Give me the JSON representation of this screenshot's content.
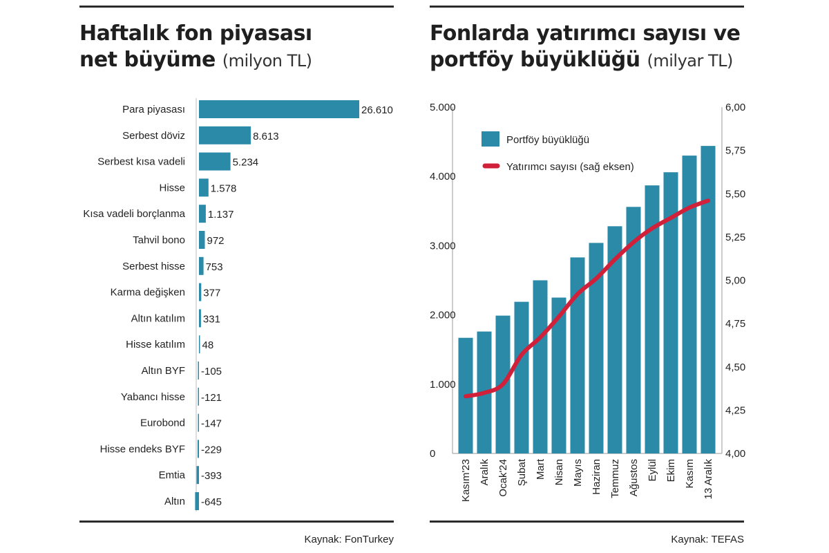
{
  "left": {
    "title_line1": "Haftalık fon piyasası",
    "title_line2": "net büyüme",
    "unit": "(milyon TL)",
    "source": "Kaynak: FonTurkey"
  },
  "right": {
    "title_line1": "Fonlarda yatırımcı sayısı ve",
    "title_line2": "portföy büyüklüğü",
    "unit": "(milyar TL)",
    "source": "Kaynak: TEFAS"
  },
  "colors": {
    "bar": "#2a8aa8",
    "line": "#d0203a",
    "rule": "#2b2b2b"
  },
  "chart_data": [
    {
      "type": "bar",
      "orientation": "horizontal",
      "categories": [
        "Para piyasası",
        "Serbest döviz",
        "Serbest kısa vadeli",
        "Hisse",
        "Kısa vadeli borçlanma",
        "Tahvil bono",
        "Serbest hisse",
        "Karma değişken",
        "Altın katılım",
        "Hisse katılım",
        "Altın BYF",
        "Yabancı hisse",
        "Eurobond",
        "Hisse endeks BYF",
        "Emtia",
        "Altın"
      ],
      "values": [
        26610,
        8613,
        5234,
        1578,
        1137,
        972,
        753,
        377,
        331,
        48,
        -105,
        -121,
        -147,
        -229,
        -393,
        -645
      ],
      "value_labels": [
        "26.610",
        "8.613",
        "5.234",
        "1.578",
        "1.137",
        "972",
        "753",
        "377",
        "331",
        "48",
        "-105",
        "-121",
        "-147",
        "-229",
        "-393",
        "-645"
      ],
      "title": "Haftalık fon piyasası net büyüme",
      "unit": "milyon TL",
      "grid": false
    },
    {
      "type": "bar",
      "categories": [
        "Kasım'23",
        "Aralık",
        "Ocak'24",
        "Şubat",
        "Mart",
        "Nisan",
        "Mayıs",
        "Haziran",
        "Temmuz",
        "Ağustos",
        "Eylül",
        "Ekim",
        "Kasım",
        "13 Aralık"
      ],
      "series": [
        {
          "name": "Portföy büyüklüğü",
          "type": "bar",
          "axis": "left",
          "values": [
            1670,
            1760,
            1990,
            2190,
            2500,
            2250,
            2830,
            3040,
            3280,
            3560,
            3870,
            4060,
            4300,
            4440
          ]
        },
        {
          "name": "Yatırımcı sayısı (sağ eksen)",
          "type": "line",
          "axis": "right",
          "values": [
            4.33,
            4.35,
            4.4,
            4.57,
            4.67,
            4.79,
            4.92,
            5.01,
            5.12,
            5.22,
            5.3,
            5.36,
            5.42,
            5.46
          ]
        }
      ],
      "y_left": {
        "lim": [
          0,
          5000
        ],
        "ticks": [
          0,
          1000,
          2000,
          3000,
          4000,
          5000
        ],
        "tick_labels": [
          "0",
          "1.000",
          "2.000",
          "3.000",
          "4.000",
          "5.000"
        ]
      },
      "y_right": {
        "lim": [
          4.0,
          6.0
        ],
        "ticks": [
          4.0,
          4.25,
          4.5,
          4.75,
          5.0,
          5.25,
          5.5,
          5.75,
          6.0
        ],
        "tick_labels": [
          "4,00",
          "4,25",
          "4,50",
          "4,75",
          "5,00",
          "5,25",
          "5,50",
          "5,75",
          "6,00"
        ]
      },
      "title": "Fonlarda yatırımcı sayısı ve portföy büyüklüğü",
      "unit": "milyar TL",
      "legend": "top-left",
      "grid": false
    }
  ]
}
